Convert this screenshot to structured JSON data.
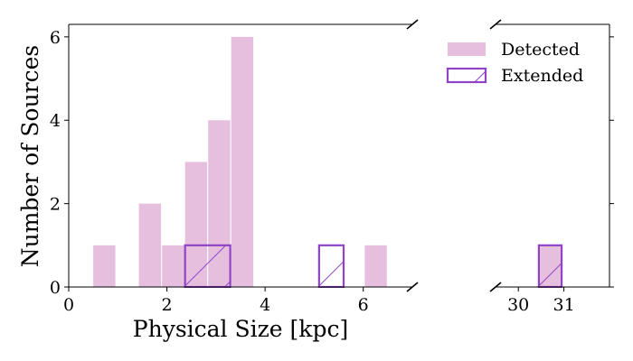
{
  "chart_data": {
    "type": "bar",
    "subtype": "histogram-broken-x-axis",
    "xlabel": "Physical Size [kpc]",
    "ylabel": "Number of Sources",
    "ylim": [
      0,
      6.3
    ],
    "y_ticks": [
      0,
      2,
      4,
      6
    ],
    "left_panel": {
      "xlim": [
        0,
        7
      ],
      "x_ticks": [
        0,
        2,
        4,
        6
      ]
    },
    "right_panel": {
      "xlim": [
        29.5,
        32
      ],
      "x_ticks": [
        30,
        31
      ]
    },
    "legend": {
      "placement": "top-right",
      "entries": [
        "Detected",
        "Extended"
      ]
    },
    "colors": {
      "detected": "#e6bfdf",
      "extended": "#8e44c4"
    },
    "series": [
      {
        "name": "Detected",
        "bins": [
          {
            "x0": 0.5,
            "x1": 0.95,
            "value": 1
          },
          {
            "x0": 1.43,
            "x1": 1.88,
            "value": 2
          },
          {
            "x0": 1.9,
            "x1": 2.35,
            "value": 1
          },
          {
            "x0": 2.37,
            "x1": 2.82,
            "value": 3
          },
          {
            "x0": 2.84,
            "x1": 3.29,
            "value": 4
          },
          {
            "x0": 3.31,
            "x1": 3.76,
            "value": 6
          },
          {
            "x0": 6.03,
            "x1": 6.48,
            "value": 1
          },
          {
            "x0": 30.45,
            "x1": 30.95,
            "value": 1
          }
        ]
      },
      {
        "name": "Extended",
        "bins": [
          {
            "x0": 2.37,
            "x1": 3.29,
            "value": 1
          },
          {
            "x0": 5.1,
            "x1": 5.6,
            "value": 1
          },
          {
            "x0": 30.45,
            "x1": 30.95,
            "value": 1
          }
        ]
      }
    ]
  }
}
